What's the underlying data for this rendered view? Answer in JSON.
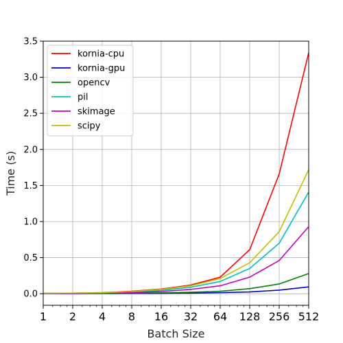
{
  "chart_data": {
    "type": "line",
    "title": "",
    "xlabel": "Batch Size",
    "ylabel": "Time (s)",
    "x_scale": "log2",
    "x": [
      1,
      2,
      4,
      8,
      16,
      32,
      64,
      128,
      256,
      512
    ],
    "x_tick_labels": [
      "1",
      "2",
      "4",
      "8",
      "16",
      "32",
      "64",
      "128",
      "256",
      "512"
    ],
    "xlim": [
      1,
      512
    ],
    "ylim": [
      -0.16,
      3.5
    ],
    "y_ticks": [
      0.0,
      0.5,
      1.0,
      1.5,
      2.0,
      2.5,
      3.0,
      3.5
    ],
    "y_tick_labels": [
      "0.0",
      "0.5",
      "1.0",
      "1.5",
      "2.0",
      "2.5",
      "3.0",
      "3.5"
    ],
    "grid": true,
    "legend_position": "top-left",
    "series": [
      {
        "name": "kornia-cpu",
        "color": "#ff0000",
        "values": [
          0.005,
          0.008,
          0.015,
          0.035,
          0.065,
          0.12,
          0.23,
          0.61,
          1.66,
          3.34
        ]
      },
      {
        "name": "kornia-gpu",
        "color": "#0000cc",
        "values": [
          0.001,
          0.001,
          0.002,
          0.003,
          0.005,
          0.008,
          0.015,
          0.025,
          0.05,
          0.095
        ]
      },
      {
        "name": "opencv",
        "color": "#008000",
        "values": [
          0.002,
          0.003,
          0.004,
          0.007,
          0.012,
          0.02,
          0.035,
          0.07,
          0.135,
          0.28
        ]
      },
      {
        "name": "pil",
        "color": "#00bfbf",
        "values": [
          0.005,
          0.007,
          0.012,
          0.022,
          0.045,
          0.09,
          0.17,
          0.35,
          0.7,
          1.41
        ]
      },
      {
        "name": "skimage",
        "color": "#bf00bf",
        "values": [
          0.003,
          0.005,
          0.008,
          0.015,
          0.03,
          0.06,
          0.11,
          0.23,
          0.46,
          0.93
        ]
      },
      {
        "name": "scipy",
        "color": "#bfbf00",
        "values": [
          0.006,
          0.009,
          0.014,
          0.03,
          0.06,
          0.11,
          0.21,
          0.43,
          0.86,
          1.72
        ]
      }
    ]
  }
}
